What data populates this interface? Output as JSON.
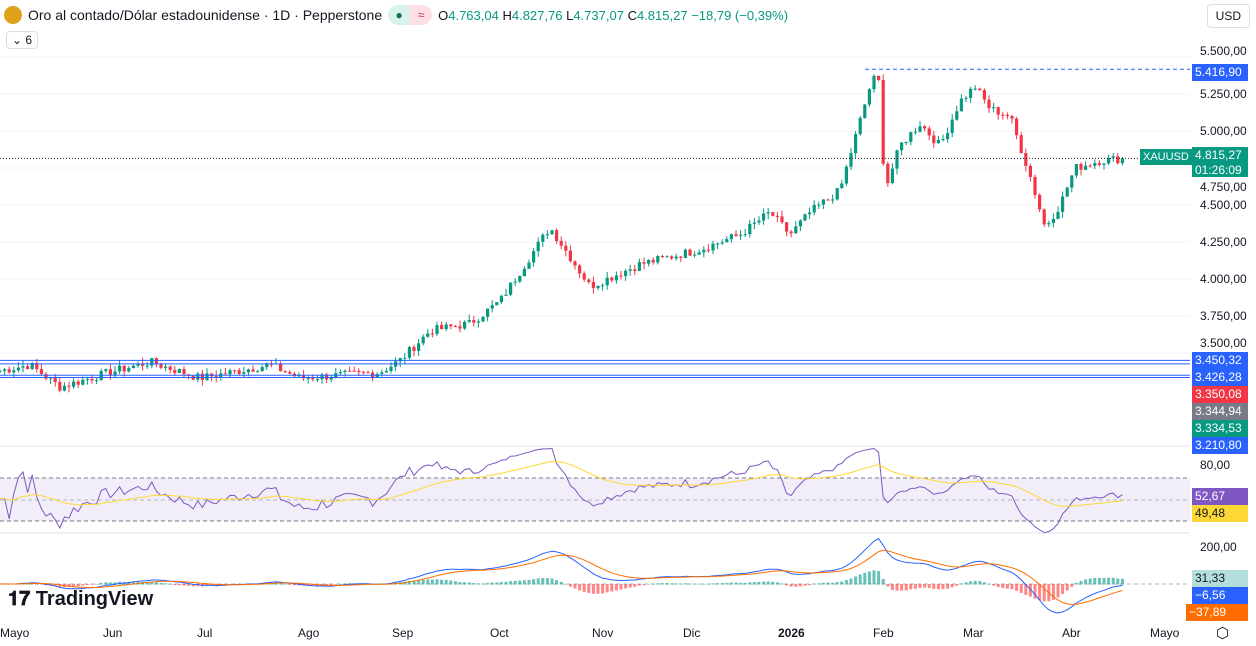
{
  "header": {
    "title": "Oro al contado/Dólar estadounidense · 1D · Pepperstone",
    "open_label": "O",
    "open": "4.763,04",
    "high_label": "H",
    "high": "4.827,76",
    "low_label": "L",
    "low": "4.737,07",
    "close_label": "C",
    "close": "4.815,27",
    "change": "−18,79 (−0,39%)",
    "indicator_count": "6",
    "currency": "USD"
  },
  "price_axis": [
    "5.500,00",
    "5.250,00",
    "5.000,00",
    "4.750,00",
    "4.500,00",
    "4.250,00",
    "4.000,00",
    "3.750,00",
    "3.500,00"
  ],
  "price_labels": [
    {
      "text": "5.416,90",
      "color": "#2962ff"
    },
    {
      "text": "4.815,27",
      "color": "#089981",
      "sub": "01:26:09"
    },
    {
      "text": "3.450,32",
      "color": "#2962ff"
    },
    {
      "text": "3.426,28",
      "color": "#2962ff"
    },
    {
      "text": "3.350,08",
      "color": "#f23645"
    },
    {
      "text": "3.344,94",
      "color": "#787b86"
    },
    {
      "text": "3.334,53",
      "color": "#089981"
    },
    {
      "text": "3.210,80",
      "color": "#2962ff"
    }
  ],
  "symbol_tag": "XAUUSD",
  "rsi": {
    "axis": "80,00",
    "value": "52,67",
    "ma": "49,48"
  },
  "macd": {
    "axis": "200,00",
    "hist": "31,33",
    "macd": "−6,56",
    "signal": "−37,89"
  },
  "months": [
    "Mayo",
    "Jun",
    "Jul",
    "Ago",
    "Sep",
    "Oct",
    "Nov",
    "Dic",
    "2026",
    "Feb",
    "Mar",
    "Abr",
    "Mayo"
  ],
  "brand": "TradingView",
  "chart_data": {
    "type": "candlestick",
    "last_price": 4815.27,
    "ylim": [
      3200,
      5600
    ],
    "price_path": [
      [
        0,
        3380
      ],
      [
        30,
        3420
      ],
      [
        60,
        3270
      ],
      [
        110,
        3370
      ],
      [
        150,
        3440
      ],
      [
        200,
        3330
      ],
      [
        270,
        3420
      ],
      [
        300,
        3330
      ],
      [
        380,
        3370
      ],
      [
        400,
        3450
      ],
      [
        430,
        3650
      ],
      [
        470,
        3700
      ],
      [
        500,
        3850
      ],
      [
        550,
        4350
      ],
      [
        570,
        4150
      ],
      [
        590,
        3950
      ],
      [
        640,
        4100
      ],
      [
        700,
        4200
      ],
      [
        740,
        4300
      ],
      [
        770,
        4450
      ],
      [
        790,
        4300
      ],
      [
        810,
        4450
      ],
      [
        840,
        4600
      ],
      [
        870,
        5300
      ],
      [
        878,
        5400
      ],
      [
        885,
        4600
      ],
      [
        900,
        4900
      ],
      [
        920,
        5050
      ],
      [
        940,
        4900
      ],
      [
        960,
        5200
      ],
      [
        975,
        5300
      ],
      [
        990,
        5150
      ],
      [
        1010,
        5100
      ],
      [
        1030,
        4700
      ],
      [
        1045,
        4350
      ],
      [
        1060,
        4500
      ],
      [
        1075,
        4750
      ],
      [
        1100,
        4800
      ],
      [
        1125,
        4815
      ]
    ]
  }
}
